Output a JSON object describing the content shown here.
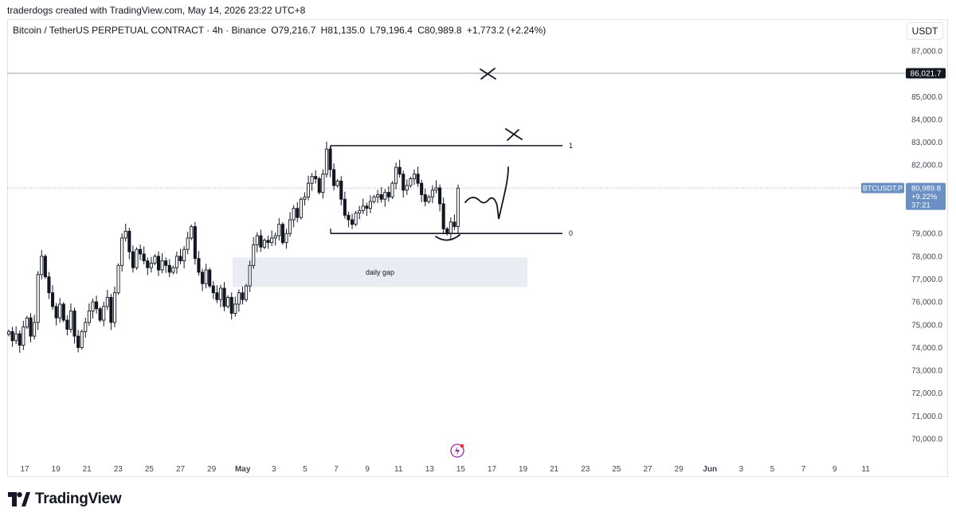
{
  "header": {
    "caption": "traderdogs created with TradingView.com, May 14, 2026 23:22 UTC+8"
  },
  "symbol": {
    "title": "Bitcoin / TetherUS PERPETUAL CONTRACT · 4h · Binance",
    "open_label": "O",
    "open": "79,216.7",
    "high_label": "H",
    "high": "81,135.0",
    "low_label": "L",
    "low": "79,196.4",
    "close_label": "C",
    "close": "80,989.8",
    "change": "+1,773.2 (+2.24%)"
  },
  "currency_button": "USDT",
  "footer": {
    "brand": "TradingView"
  },
  "colors": {
    "candle": "#131722",
    "gap_zone": "#e9ecf2",
    "price_tag": "#6a90c4",
    "line_tag": "#131722",
    "accent_icon": "#9c27b0"
  },
  "chart_data": {
    "type": "candlestick",
    "timeframe": "4h",
    "ylim": [
      69500,
      88000
    ],
    "y_ticks": [
      87000,
      86000,
      85000,
      84000,
      83000,
      82000,
      81000,
      80000,
      79000,
      78000,
      77000,
      76000,
      75000,
      74000,
      73000,
      72000,
      71000,
      70000
    ],
    "y_tick_labels": [
      "87,000.0",
      "85,000.0",
      "84,000.0",
      "83,000.0",
      "82,000.0",
      "79,000.0",
      "78,000.0",
      "77,000.0",
      "76,000.0",
      "75,000.0",
      "74,000.0",
      "73,000.0",
      "72,000.0",
      "71,000.0",
      "70,000.0"
    ],
    "x_tick_labels": [
      "17",
      "19",
      "21",
      "23",
      "25",
      "27",
      "29",
      "May",
      "3",
      "5",
      "7",
      "9",
      "11",
      "13",
      "15",
      "17",
      "19",
      "21",
      "23",
      "25",
      "27",
      "29",
      "Jun",
      "3",
      "5",
      "7",
      "9",
      "11"
    ],
    "horizontal_line": {
      "value": 86021.7,
      "label": "86,021.7"
    },
    "current_price": {
      "symbol": "BTCUSDT.P",
      "value": "80,989.8",
      "change": "+9.22%",
      "countdown": "37:21"
    },
    "range_levels": [
      {
        "label": "1",
        "value": 82850
      },
      {
        "label": "0",
        "value": 79000
      }
    ],
    "zone": {
      "label": "daily gap",
      "from": 76650,
      "to": 77950
    },
    "closes": [
      74700,
      74300,
      74600,
      74100,
      74900,
      75300,
      74500,
      75100,
      77200,
      78000,
      77100,
      76400,
      75800,
      75300,
      75900,
      75200,
      74800,
      75600,
      74500,
      74000,
      74700,
      75100,
      75600,
      76000,
      75700,
      75200,
      75800,
      76200,
      75100,
      76400,
      77600,
      78800,
      79100,
      78200,
      77500,
      78300,
      78100,
      77800,
      77500,
      77700,
      78000,
      77400,
      77800,
      77600,
      77300,
      77500,
      78000,
      77800,
      78300,
      78800,
      79300,
      77900,
      77300,
      76800,
      77400,
      76700,
      76400,
      76100,
      76600,
      75800,
      76200,
      75500,
      75900,
      76400,
      76100,
      76700,
      77600,
      78500,
      78900,
      78400,
      78700,
      78600,
      78800,
      78900,
      79400,
      78600,
      79000,
      79600,
      80100,
      79700,
      80500,
      80600,
      81200,
      81500,
      81400,
      80800,
      81600,
      82700,
      81800,
      81100,
      81300,
      80500,
      79800,
      79600,
      79400,
      79900,
      80000,
      80200,
      80100,
      80400,
      80600,
      80700,
      80500,
      80800,
      80600,
      81200,
      81900,
      81600,
      80900,
      81100,
      81400,
      81600,
      81200,
      80700,
      80400,
      80600,
      80900,
      81000,
      80300,
      79200,
      79000,
      79500,
      79300,
      80989.8
    ],
    "annotations": [
      "X mark near 86,021.7 line",
      "X mark above level 1",
      "arc under recent low",
      "projected path drawing"
    ]
  }
}
